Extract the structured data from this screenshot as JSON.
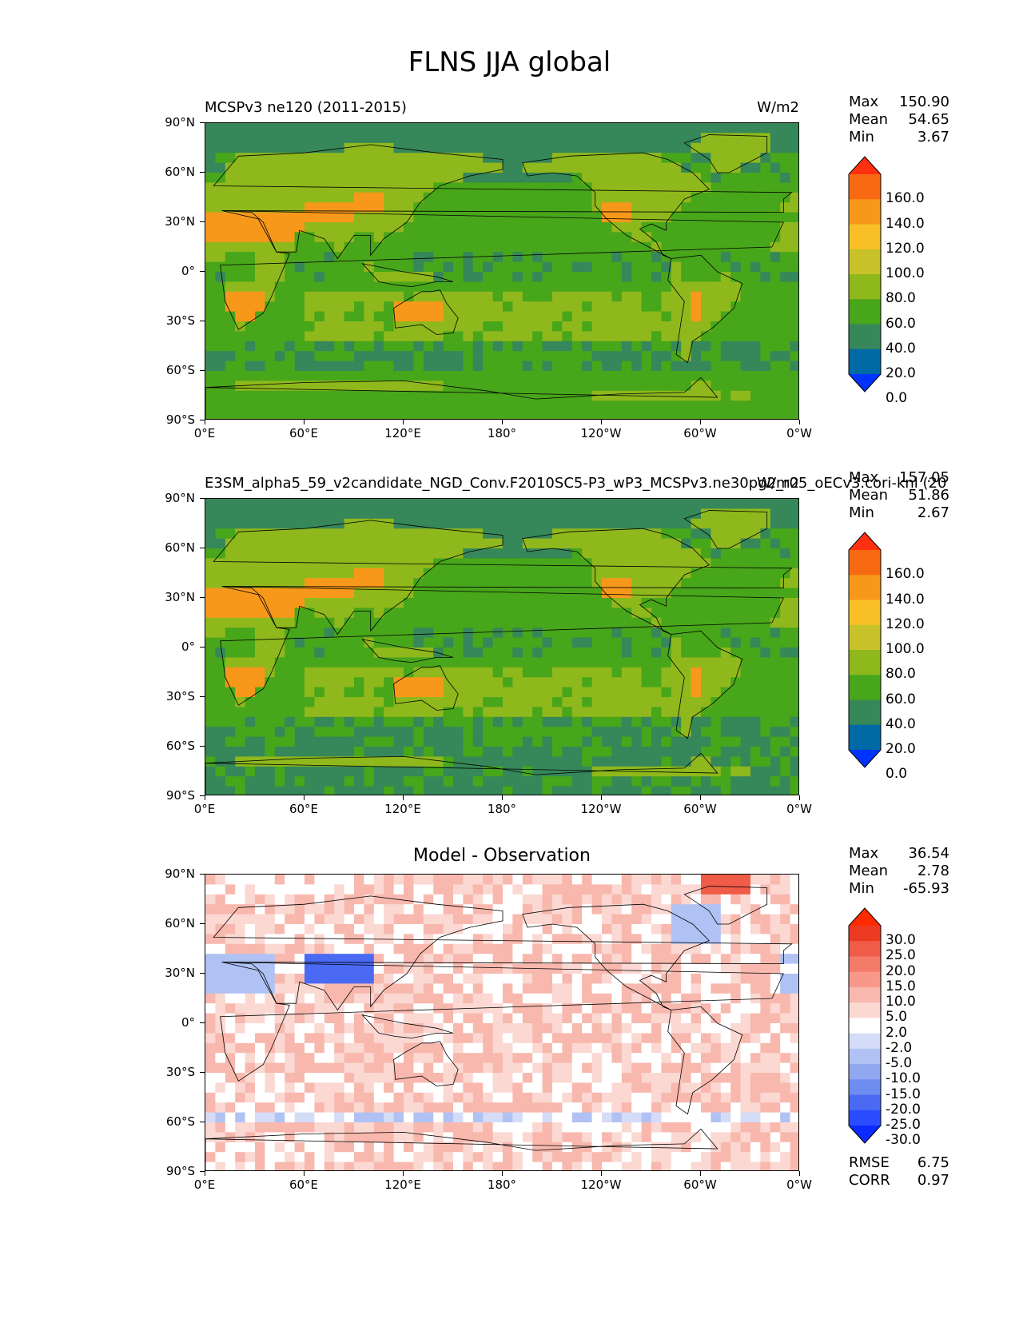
{
  "figure": {
    "title": "FLNS JJA global"
  },
  "colors": {
    "abs_palette": [
      "#0033ff",
      "#006aa6",
      "#36875a",
      "#48a61a",
      "#8fb81c",
      "#c8c22a",
      "#f8c026",
      "#f8981a",
      "#f86a12",
      "#ff3010"
    ],
    "diff_palette": [
      "#0a2aff",
      "#2a4cff",
      "#4a6af4",
      "#6f8cf0",
      "#90a8f0",
      "#b0c2f4",
      "#d4dcf8",
      "#ffffff",
      "#fbd8d2",
      "#f8b8ae",
      "#f8988a",
      "#f47a6a",
      "#f05c48",
      "#ec3a22",
      "#ff2a00"
    ],
    "coastline": "#000000"
  },
  "axes": {
    "yticks": [
      "90°N",
      "60°N",
      "30°N",
      "0°",
      "30°S",
      "60°S",
      "90°S"
    ],
    "xticks": [
      "0°E",
      "60°E",
      "120°E",
      "180°",
      "120°W",
      "60°W",
      "0°W"
    ]
  },
  "chart_data": [
    {
      "type": "heatmap",
      "panel": "test",
      "title_left": "MCSPv3 ne120 (2011-2015)",
      "title_right": "W/m2",
      "stats": {
        "max_label": "Max",
        "max": "150.90",
        "mean_label": "Mean",
        "mean": "54.65",
        "min_label": "Min",
        "min": "3.67"
      },
      "colorbar": {
        "levels": [
          0.0,
          20.0,
          40.0,
          60.0,
          80.0,
          100.0,
          120.0,
          140.0,
          160.0
        ],
        "labels": [
          "160.0",
          "140.0",
          "120.0",
          "100.0",
          "80.0",
          "60.0",
          "40.0",
          "20.0",
          "0.0"
        ]
      },
      "xlim": [
        0,
        360
      ],
      "ylim": [
        -90,
        90
      ]
    },
    {
      "type": "heatmap",
      "panel": "reference",
      "title_left": "E3SM_alpha5_59_v2candidate_NGD_Conv.F2010SC5-P3_wP3_MCSPv3.ne30pg2_r05_oECv3.cori-knl (20",
      "title_right": "W/m2",
      "stats": {
        "max_label": "Max",
        "max": "157.05",
        "mean_label": "Mean",
        "mean": "51.86",
        "min_label": "Min",
        "min": "2.67"
      },
      "colorbar": {
        "levels": [
          0.0,
          20.0,
          40.0,
          60.0,
          80.0,
          100.0,
          120.0,
          140.0,
          160.0
        ],
        "labels": [
          "160.0",
          "140.0",
          "120.0",
          "100.0",
          "80.0",
          "60.0",
          "40.0",
          "20.0",
          "0.0"
        ]
      },
      "xlim": [
        0,
        360
      ],
      "ylim": [
        -90,
        90
      ]
    },
    {
      "type": "heatmap",
      "panel": "difference",
      "title_center": "Model - Observation",
      "stats": {
        "max_label": "Max",
        "max": "36.54",
        "mean_label": "Mean",
        "mean": "2.78",
        "min_label": "Min",
        "min": "-65.93"
      },
      "metrics": {
        "rmse_label": "RMSE",
        "rmse": "6.75",
        "corr_label": "CORR",
        "corr": "0.97"
      },
      "colorbar": {
        "levels": [
          -30.0,
          -25.0,
          -20.0,
          -15.0,
          -10.0,
          -5.0,
          -2.0,
          2.0,
          5.0,
          10.0,
          15.0,
          20.0,
          25.0,
          30.0
        ],
        "labels": [
          "30.0",
          "25.0",
          "20.0",
          "15.0",
          "10.0",
          "5.0",
          "2.0",
          "-2.0",
          "-5.0",
          "-10.0",
          "-15.0",
          "-20.0",
          "-25.0",
          "-30.0"
        ]
      },
      "xlim": [
        0,
        360
      ],
      "ylim": [
        -90,
        90
      ]
    }
  ]
}
